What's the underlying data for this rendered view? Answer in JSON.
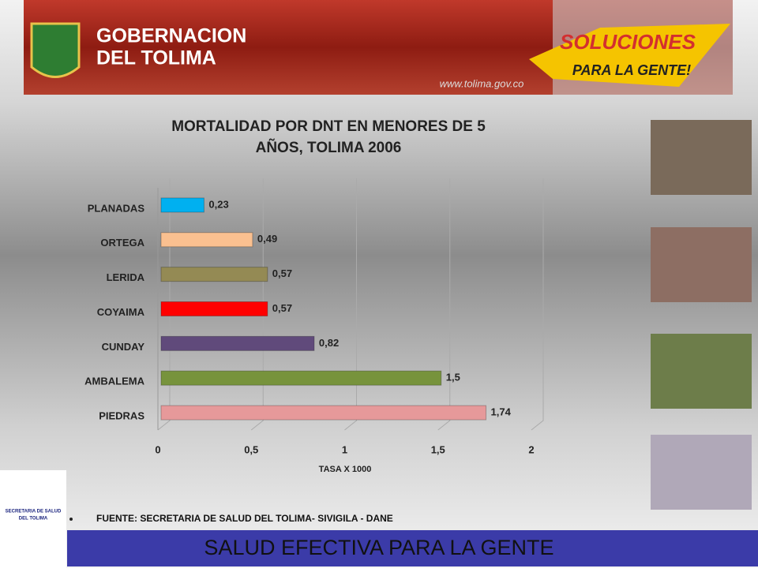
{
  "header": {
    "title_line1": "GOBERNACION",
    "title_line2": "DEL TOLIMA",
    "slogan_line1": "SOLUCIONES",
    "slogan_line2": "PARA LA GENTE!",
    "url": "www.tolima.gov.co"
  },
  "chart_data": {
    "type": "barh",
    "title": "MORTALIDAD POR DNT EN MENORES DE 5 AÑOS, TOLIMA 2006",
    "categories": [
      "PLANADAS",
      "ORTEGA",
      "LERIDA",
      "COYAIMA",
      "CUNDAY",
      "AMBALEMA",
      "PIEDRAS"
    ],
    "values": [
      0.23,
      0.49,
      0.57,
      0.57,
      0.82,
      1.5,
      1.74
    ],
    "value_labels": [
      "0,23",
      "0,49",
      "0,57",
      "0,57",
      "0,82",
      "1,5",
      "1,74"
    ],
    "colors": [
      "#00b0f0",
      "#fac090",
      "#948a54",
      "#ff0000",
      "#604a7b",
      "#77933c",
      "#e6999a"
    ],
    "xlabel": "TASA X 1000",
    "xlim": [
      0,
      2
    ],
    "xticks": [
      0,
      {
        "value": 0.5,
        "label": "0,5"
      },
      1,
      {
        "value": 1.5,
        "label": "1,5"
      },
      2
    ],
    "grid": true
  },
  "logo": {
    "line1": "SECRETARIA DE SALUD",
    "line2": "DEL TOLIMA"
  },
  "source": "FUENTE: SECRETARIA DE SALUD DEL TOLIMA- SIVIGILA - DANE",
  "footer": "SALUD EFECTIVA PARA LA GENTE"
}
